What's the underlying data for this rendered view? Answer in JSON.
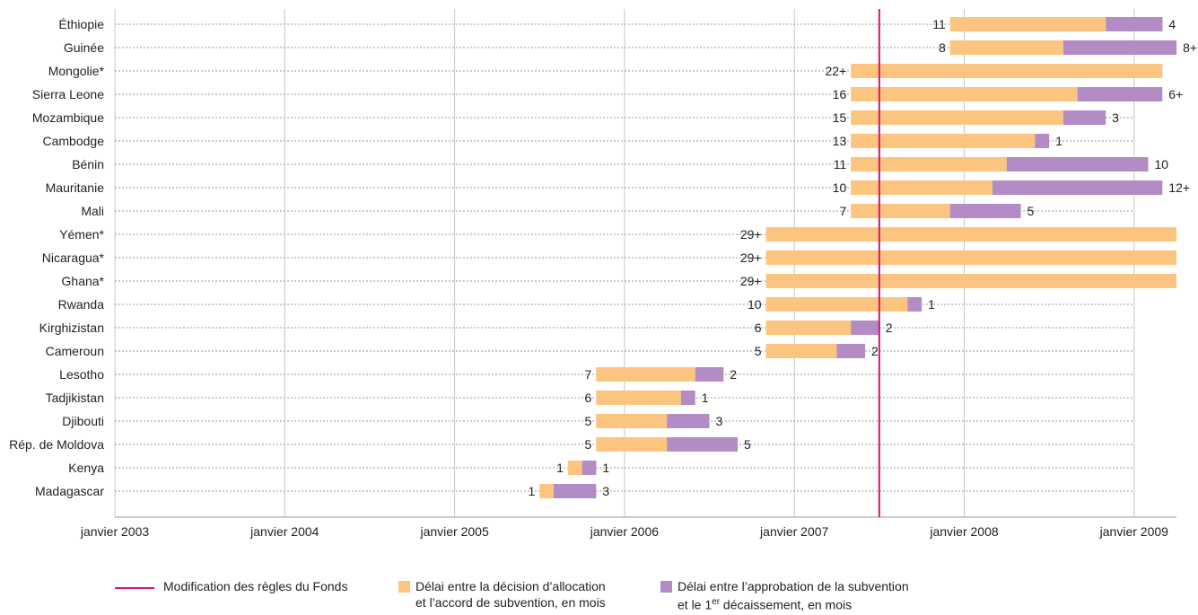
{
  "chart_data": {
    "type": "bar",
    "orientation": "horizontal-timeline",
    "x_axis": {
      "ticks": [
        "janvier 2003",
        "janvier 2004",
        "janvier 2005",
        "janvier 2006",
        "janvier 2007",
        "janvier 2008",
        "janvier 2009"
      ],
      "tick_years": [
        2003,
        2004,
        2005,
        2006,
        2007,
        2008,
        2009
      ],
      "range": [
        2003,
        2009.25
      ],
      "grid": true
    },
    "reference_line": {
      "date": 2007.5,
      "label": "Modification des règles du Fonds",
      "color": "#d4166f"
    },
    "series": [
      {
        "key": "allocation",
        "name": "Délai entre la décision d’allocation et l’accord de subvention, en mois",
        "color": "#fcc57f"
      },
      {
        "key": "disbursement",
        "name": "Délai entre l’approbation de la subvention et le 1er décaissement, en mois",
        "color": "#b38bc5"
      }
    ],
    "rows": [
      {
        "country": "Éthiopie",
        "start": 2007.917,
        "allocation": 11,
        "allocation_label": "11",
        "disbursement": 4,
        "disbursement_label": "4"
      },
      {
        "country": "Guinée",
        "start": 2007.917,
        "allocation": 8,
        "allocation_label": "8",
        "disbursement": 8,
        "disbursement_label": "8+"
      },
      {
        "country": "Mongolie*",
        "start": 2007.333,
        "allocation": 22,
        "allocation_label": "22+",
        "disbursement": 0,
        "disbursement_label": ""
      },
      {
        "country": "Sierra Leone",
        "start": 2007.333,
        "allocation": 16,
        "allocation_label": "16",
        "disbursement": 6,
        "disbursement_label": "6+"
      },
      {
        "country": "Mozambique",
        "start": 2007.333,
        "allocation": 15,
        "allocation_label": "15",
        "disbursement": 3,
        "disbursement_label": "3"
      },
      {
        "country": "Cambodge",
        "start": 2007.333,
        "allocation": 13,
        "allocation_label": "13",
        "disbursement": 1,
        "disbursement_label": "1"
      },
      {
        "country": "Bénin",
        "start": 2007.333,
        "allocation": 11,
        "allocation_label": "11",
        "disbursement": 10,
        "disbursement_label": "10"
      },
      {
        "country": "Mauritanie",
        "start": 2007.333,
        "allocation": 10,
        "allocation_label": "10",
        "disbursement": 12,
        "disbursement_label": "12+"
      },
      {
        "country": "Mali",
        "start": 2007.333,
        "allocation": 7,
        "allocation_label": "7",
        "disbursement": 5,
        "disbursement_label": "5"
      },
      {
        "country": "Yémen*",
        "start": 2006.833,
        "allocation": 29,
        "allocation_label": "29+",
        "disbursement": 0,
        "disbursement_label": ""
      },
      {
        "country": "Nicaragua*",
        "start": 2006.833,
        "allocation": 29,
        "allocation_label": "29+",
        "disbursement": 0,
        "disbursement_label": ""
      },
      {
        "country": "Ghana*",
        "start": 2006.833,
        "allocation": 29,
        "allocation_label": "29+",
        "disbursement": 0,
        "disbursement_label": ""
      },
      {
        "country": "Rwanda",
        "start": 2006.833,
        "allocation": 10,
        "allocation_label": "10",
        "disbursement": 1,
        "disbursement_label": "1"
      },
      {
        "country": "Kirghizistan",
        "start": 2006.833,
        "allocation": 6,
        "allocation_label": "6",
        "disbursement": 2,
        "disbursement_label": "2"
      },
      {
        "country": "Cameroun",
        "start": 2006.833,
        "allocation": 5,
        "allocation_label": "5",
        "disbursement": 2,
        "disbursement_label": "2"
      },
      {
        "country": "Lesotho",
        "start": 2005.833,
        "allocation": 7,
        "allocation_label": "7",
        "disbursement": 2,
        "disbursement_label": "2"
      },
      {
        "country": "Tadjikistan",
        "start": 2005.833,
        "allocation": 6,
        "allocation_label": "6",
        "disbursement": 1,
        "disbursement_label": "1"
      },
      {
        "country": "Djibouti",
        "start": 2005.833,
        "allocation": 5,
        "allocation_label": "5",
        "disbursement": 3,
        "disbursement_label": "3"
      },
      {
        "country": "Rép. de Moldova",
        "start": 2005.833,
        "allocation": 5,
        "allocation_label": "5",
        "disbursement": 5,
        "disbursement_label": "5"
      },
      {
        "country": "Kenya",
        "start": 2005.667,
        "allocation": 1,
        "allocation_label": "1",
        "disbursement": 1,
        "disbursement_label": "1"
      },
      {
        "country": "Madagascar",
        "start": 2005.5,
        "allocation": 1,
        "allocation_label": "1",
        "disbursement": 3,
        "disbursement_label": "3"
      }
    ]
  },
  "legend": {
    "rule_change": "Modification des règles du Fonds",
    "allocation_line1": "Délai entre la décision d’allocation",
    "allocation_line2": "et l’accord de subvention, en mois",
    "disbursement_line1": "Délai entre l’approbation de la subvention",
    "disbursement_line2_pre": "et le 1",
    "disbursement_line2_sup": "er",
    "disbursement_line2_post": " décaissement, en mois"
  }
}
